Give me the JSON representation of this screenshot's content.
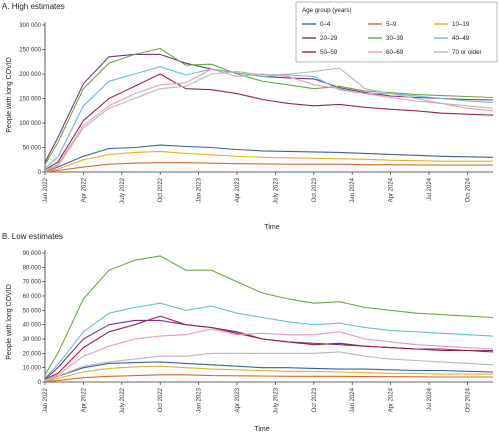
{
  "legend": {
    "title": "Age group (years)",
    "entries": [
      {
        "name": "0–4",
        "color": "#3a5fa8"
      },
      {
        "name": "5–9",
        "color": "#d86a2b"
      },
      {
        "name": "10–19",
        "color": "#e8b024"
      },
      {
        "name": "20–29",
        "color": "#7a2f8e"
      },
      {
        "name": "30–39",
        "color": "#6aaa3a"
      },
      {
        "name": "40–49",
        "color": "#5fc0dc"
      },
      {
        "name": "50–59",
        "color": "#a02040"
      },
      {
        "name": "60–69",
        "color": "#e79ab8"
      },
      {
        "name": "70 or older",
        "color": "#b8b8b8"
      }
    ]
  },
  "chart_data": [
    {
      "type": "line",
      "title": "A. High estimates",
      "xlabel": "Time",
      "ylabel": "People with long COVID",
      "ylim": [
        0,
        300000
      ],
      "yticks": [
        0,
        50000,
        100000,
        150000,
        200000,
        250000,
        300000
      ],
      "ytick_labels": [
        "0",
        "50 000",
        "100 000",
        "150 000",
        "200 000",
        "250 000",
        "300 000"
      ],
      "xticks": [
        0,
        3,
        6,
        9,
        12,
        15,
        18,
        21,
        24,
        27,
        30,
        33
      ],
      "xtick_labels": [
        "Jan 2022",
        "Apr 2022",
        "July 2022",
        "Oct 2022",
        "Jan 2023",
        "Apr 2023",
        "July 2023",
        "Oct 2023",
        "Jan 2024",
        "Apr 2024",
        "Jul 2024",
        "Oct 2024"
      ],
      "x": [
        0,
        1,
        3,
        5,
        7,
        9,
        11,
        13,
        15,
        17,
        19,
        21,
        23,
        25,
        27,
        29,
        31,
        33,
        35
      ],
      "series": [
        {
          "name": "0–4",
          "values": [
            2000,
            10000,
            32000,
            48000,
            50000,
            55000,
            52000,
            50000,
            46000,
            43000,
            42000,
            41000,
            40000,
            38000,
            36000,
            34000,
            32000,
            31000,
            30000
          ]
        },
        {
          "name": "5–9",
          "values": [
            500,
            3000,
            10000,
            16000,
            18000,
            19000,
            19000,
            18000,
            17000,
            16500,
            16000,
            16000,
            16000,
            15000,
            15000,
            14500,
            14000,
            14000,
            14000
          ]
        },
        {
          "name": "10–19",
          "values": [
            1000,
            6000,
            25000,
            36000,
            40000,
            42000,
            38000,
            35000,
            32000,
            30000,
            29000,
            28000,
            27000,
            26000,
            24000,
            23000,
            22000,
            22000,
            22000
          ]
        },
        {
          "name": "20–29",
          "values": [
            20000,
            70000,
            180000,
            235000,
            240000,
            240000,
            222000,
            210000,
            202000,
            195000,
            192000,
            190000,
            172000,
            162000,
            155000,
            152000,
            150000,
            148000,
            147000
          ]
        },
        {
          "name": "30–39",
          "values": [
            15000,
            60000,
            170000,
            222000,
            240000,
            252000,
            218000,
            220000,
            200000,
            185000,
            178000,
            170000,
            175000,
            165000,
            162000,
            158000,
            156000,
            154000,
            152000
          ]
        },
        {
          "name": "40–49",
          "values": [
            8000,
            30000,
            135000,
            185000,
            200000,
            215000,
            198000,
            210000,
            202000,
            195000,
            198000,
            195000,
            168000,
            160000,
            160000,
            155000,
            150000,
            145000,
            142000
          ]
        },
        {
          "name": "50–59",
          "values": [
            5000,
            20000,
            105000,
            150000,
            175000,
            200000,
            170000,
            168000,
            160000,
            148000,
            140000,
            135000,
            138000,
            132000,
            128000,
            125000,
            120000,
            118000,
            116000
          ]
        },
        {
          "name": "60–69",
          "values": [
            4000,
            15000,
            95000,
            135000,
            160000,
            178000,
            182000,
            210000,
            195000,
            200000,
            195000,
            178000,
            170000,
            160000,
            152000,
            145000,
            140000,
            130000,
            125000
          ]
        },
        {
          "name": "70 or older",
          "values": [
            3000,
            12000,
            90000,
            130000,
            150000,
            170000,
            175000,
            200000,
            205000,
            198000,
            200000,
            205000,
            212000,
            170000,
            160000,
            150000,
            140000,
            135000,
            130000
          ]
        }
      ]
    },
    {
      "type": "line",
      "title": "B. Low estimates",
      "xlabel": "Time",
      "ylabel": "People with long COVID",
      "ylim": [
        0,
        90000
      ],
      "yticks": [
        0,
        10000,
        20000,
        30000,
        40000,
        50000,
        60000,
        70000,
        80000,
        90000
      ],
      "ytick_labels": [
        "0",
        "10 000",
        "20 000",
        "30 000",
        "40 000",
        "50 000",
        "60 000",
        "70 000",
        "80 000",
        "90 000"
      ],
      "xticks": [
        0,
        3,
        6,
        9,
        12,
        15,
        18,
        21,
        24,
        27,
        30,
        33
      ],
      "xtick_labels": [
        "Jan 2022",
        "Apr 2022",
        "July 2022",
        "Oct 2022",
        "Jan 2023",
        "Apr 2023",
        "July 2023",
        "Oct 2023",
        "Jan 2024",
        "Apr 2024",
        "Jul 2024",
        "Oct 2024"
      ],
      "x": [
        0,
        1,
        3,
        5,
        7,
        9,
        11,
        13,
        15,
        17,
        19,
        21,
        23,
        25,
        27,
        29,
        31,
        33,
        35
      ],
      "series": [
        {
          "name": "0–4",
          "values": [
            1000,
            4000,
            10000,
            13000,
            13500,
            14000,
            13000,
            12000,
            11000,
            10000,
            10000,
            9500,
            9000,
            9000,
            8500,
            8000,
            8000,
            7500,
            7000
          ]
        },
        {
          "name": "5–9",
          "values": [
            300,
            1000,
            3000,
            4000,
            4500,
            5000,
            5000,
            4500,
            4300,
            4200,
            4000,
            4000,
            4000,
            3800,
            3700,
            3600,
            3500,
            3500,
            3500
          ]
        },
        {
          "name": "10–19",
          "values": [
            800,
            2500,
            7000,
            9500,
            10500,
            11000,
            10000,
            9000,
            8500,
            8000,
            7500,
            7500,
            7000,
            6500,
            6000,
            6000,
            5500,
            5500,
            5500
          ]
        },
        {
          "name": "20–29",
          "values": [
            2000,
            10000,
            30000,
            40000,
            43000,
            43000,
            40000,
            38000,
            35000,
            30000,
            28000,
            27000,
            26000,
            25000,
            24000,
            23000,
            23000,
            22000,
            22000
          ]
        },
        {
          "name": "30–39",
          "values": [
            5000,
            20000,
            58000,
            78000,
            85000,
            88000,
            78000,
            78000,
            70000,
            62000,
            58000,
            55000,
            56000,
            52000,
            50000,
            48000,
            47000,
            46000,
            45000
          ]
        },
        {
          "name": "40–49",
          "values": [
            3000,
            12000,
            35000,
            48000,
            52000,
            55000,
            50000,
            53000,
            48000,
            45000,
            42000,
            40000,
            41000,
            38000,
            36000,
            35000,
            34000,
            33000,
            32000
          ]
        },
        {
          "name": "50–59",
          "values": [
            2000,
            6000,
            24000,
            35000,
            40000,
            46000,
            40000,
            38000,
            34000,
            30000,
            28000,
            26000,
            27000,
            25000,
            24000,
            23000,
            22000,
            22000,
            21000
          ]
        },
        {
          "name": "60–69",
          "values": [
            1500,
            5000,
            18000,
            25000,
            30000,
            32000,
            33000,
            37000,
            33000,
            34000,
            33000,
            33000,
            35000,
            30000,
            28000,
            26000,
            25000,
            24000,
            23000
          ]
        },
        {
          "name": "70 or older",
          "values": [
            1000,
            4000,
            11000,
            14000,
            16000,
            18000,
            18000,
            20000,
            20000,
            20000,
            20000,
            20000,
            21000,
            18000,
            16000,
            15000,
            14000,
            13000,
            12000
          ]
        }
      ]
    }
  ]
}
